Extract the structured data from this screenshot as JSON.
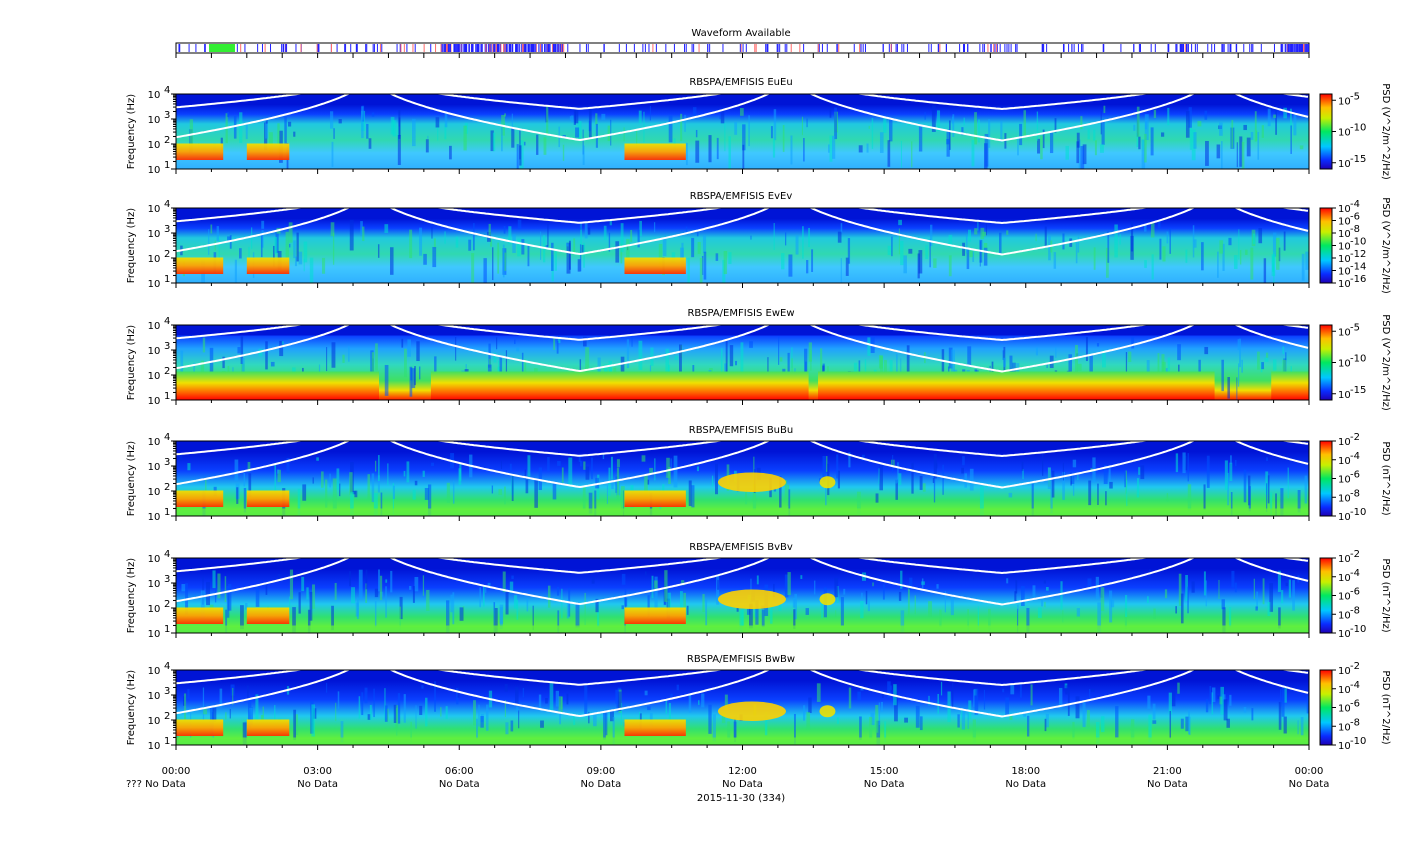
{
  "waveform": {
    "title": "Waveform Available"
  },
  "chart_data": {
    "type": "heatmap",
    "x_axis": {
      "range": [
        "00:00",
        "24:00"
      ],
      "tick_labels": [
        "00:00",
        "03:00",
        "06:00",
        "09:00",
        "12:00",
        "15:00",
        "18:00",
        "21:00",
        "00:00"
      ],
      "sub_labels": [
        "??? No Data",
        "No Data",
        "No Data",
        "No Data",
        "No Data",
        "No Data",
        "No Data",
        "No Data",
        "No Data"
      ],
      "date_label": "2015-11-30 (334)"
    },
    "y_axis": {
      "label": "Frequency (Hz)",
      "scale": "log",
      "range": [
        10,
        10000
      ],
      "tick_labels": [
        "10",
        "10",
        "10",
        "10"
      ],
      "tick_exponents": [
        "1",
        "2",
        "3",
        "4"
      ]
    },
    "panels": [
      {
        "title": "RBSPA/EMFISIS  EuEu",
        "colorbar_label": "PSD (V^2/m^2/Hz)",
        "colorbar_ticks": [
          "-5",
          "-10",
          "-15"
        ],
        "colorscale": "log",
        "range_exp": [
          -16,
          -4
        ]
      },
      {
        "title": "RBSPA/EMFISIS  EvEv",
        "colorbar_label": "PSD (V^2/m^2/Hz)",
        "colorbar_ticks": [
          "-4",
          "-6",
          "-8",
          "-10",
          "-12",
          "-14",
          "-16"
        ],
        "colorscale": "log",
        "range_exp": [
          -16,
          -4
        ]
      },
      {
        "title": "RBSPA/EMFISIS  EwEw",
        "colorbar_label": "PSD (V^2/m^2/Hz)",
        "colorbar_ticks": [
          "-5",
          "-10",
          "-15"
        ],
        "colorscale": "log",
        "range_exp": [
          -16,
          -4
        ]
      },
      {
        "title": "RBSPA/EMFISIS  BuBu",
        "colorbar_label": "PSD (nT^2/Hz)",
        "colorbar_ticks": [
          "-2",
          "-4",
          "-6",
          "-8",
          "-10"
        ],
        "colorscale": "log",
        "range_exp": [
          -10,
          -2
        ]
      },
      {
        "title": "RBSPA/EMFISIS  BvBv",
        "colorbar_label": "PSD (nT^2/Hz)",
        "colorbar_ticks": [
          "-2",
          "-4",
          "-6",
          "-8",
          "-10"
        ],
        "colorscale": "log",
        "range_exp": [
          -10,
          -2
        ]
      },
      {
        "title": "RBSPA/EMFISIS  BwBw",
        "colorbar_label": "PSD (nT^2/Hz)",
        "colorbar_ticks": [
          "-2",
          "-4",
          "-6",
          "-8",
          "-10"
        ],
        "colorscale": "log",
        "range_exp": [
          -10,
          -2
        ]
      }
    ],
    "overlay_curves": "white lines",
    "colors": {
      "background": "#ffffff",
      "low": "#0000c8",
      "mid": "#00e000",
      "high": "#ff0000",
      "curve": "#ffffff",
      "waveform_mark": "#0000ff",
      "waveform_burst": "#33ee33"
    }
  }
}
